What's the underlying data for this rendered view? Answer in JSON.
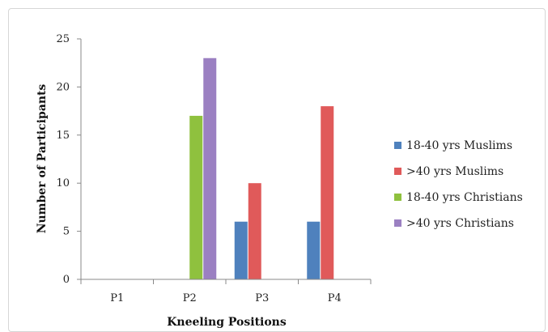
{
  "chart_data": {
    "type": "bar",
    "xlabel": "Kneeling Positions",
    "ylabel": "Number of Participants",
    "categories": [
      "P1",
      "P2",
      "P3",
      "P4"
    ],
    "ylim": [
      0,
      25
    ],
    "yticks": [
      0,
      5,
      10,
      15,
      20,
      25
    ],
    "grid": false,
    "legend_position": "right",
    "series": [
      {
        "name": "18-40 yrs Muslims",
        "color": "#4f81bd",
        "values": [
          0,
          0,
          6,
          6
        ]
      },
      {
        "name": ">40 yrs Muslims",
        "color": "#e05a5a",
        "values": [
          0,
          0,
          10,
          18
        ]
      },
      {
        "name": "18-40 yrs Christians",
        "color": "#8fc13e",
        "values": [
          0,
          17,
          0,
          0
        ]
      },
      {
        "name": ">40 yrs Christians",
        "color": "#9b80c2",
        "values": [
          0,
          23,
          0,
          0
        ]
      }
    ]
  }
}
